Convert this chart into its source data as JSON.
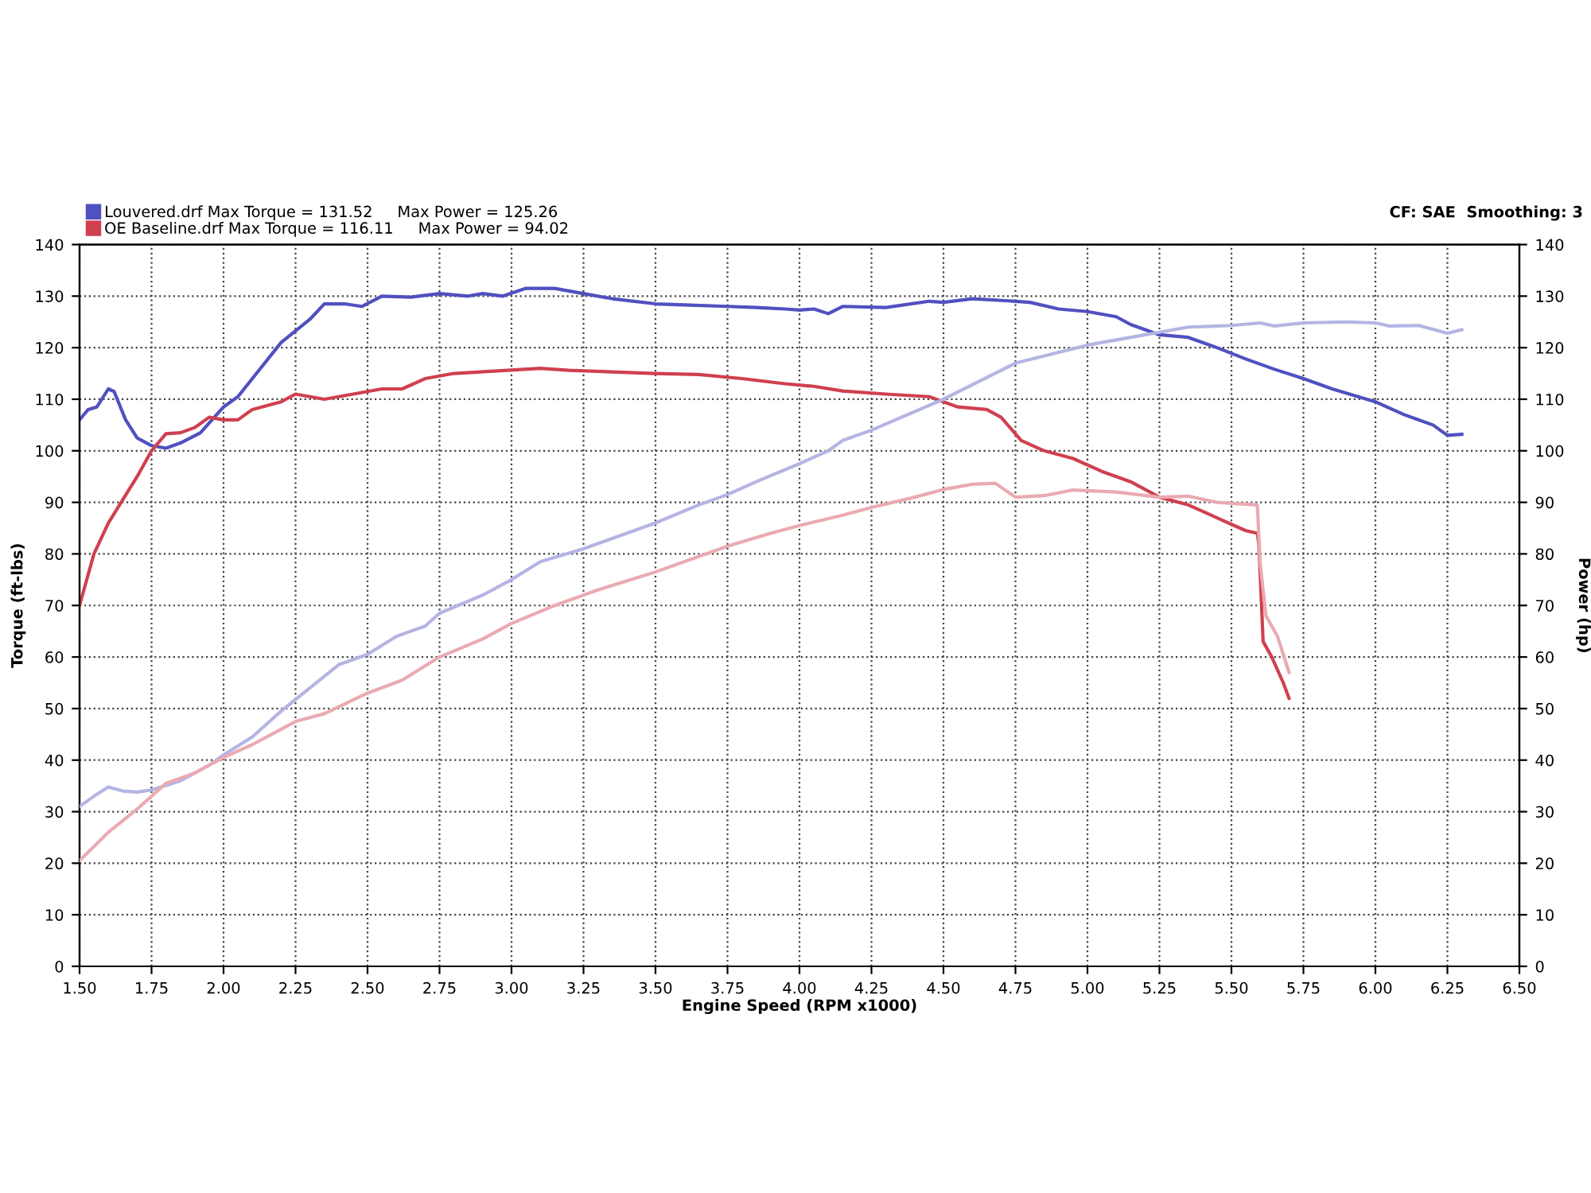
{
  "chart_data": {
    "type": "line",
    "xlabel": "Engine Speed (RPM x1000)",
    "ylabel": "Torque (ft-lbs)",
    "y2label": "Power (hp)",
    "annotations": [
      "CF: SAE  Smoothing: 3"
    ],
    "xlim": [
      1.5,
      6.5
    ],
    "xticks": [
      {
        "value": 1.5,
        "label": "1.50"
      },
      {
        "value": 1.75,
        "label": "1.75"
      },
      {
        "value": 2.0,
        "label": "2.00"
      },
      {
        "value": 2.25,
        "label": "2.25"
      },
      {
        "value": 2.5,
        "label": "2.50"
      },
      {
        "value": 2.75,
        "label": "2.75"
      },
      {
        "value": 3.0,
        "label": "3.00"
      },
      {
        "value": 3.25,
        "label": "3.25"
      },
      {
        "value": 3.5,
        "label": "3.50"
      },
      {
        "value": 3.75,
        "label": "3.75"
      },
      {
        "value": 4.0,
        "label": "4.00"
      },
      {
        "value": 4.25,
        "label": "4.25"
      },
      {
        "value": 4.5,
        "label": "4.50"
      },
      {
        "value": 4.75,
        "label": "4.75"
      },
      {
        "value": 5.0,
        "label": "5.00"
      },
      {
        "value": 5.25,
        "label": "5.25"
      },
      {
        "value": 5.5,
        "label": "5.50"
      },
      {
        "value": 5.75,
        "label": "5.75"
      },
      {
        "value": 6.0,
        "label": "6.00"
      },
      {
        "value": 6.25,
        "label": "6.25"
      },
      {
        "value": 6.5,
        "label": "6.50"
      }
    ],
    "ylim": [
      0,
      140
    ],
    "yticks": [
      0,
      10,
      20,
      30,
      40,
      50,
      60,
      70,
      80,
      90,
      100,
      110,
      120,
      130,
      140
    ],
    "y2lim": [
      0,
      140
    ],
    "y2ticks": [
      0,
      10,
      20,
      30,
      40,
      50,
      60,
      70,
      80,
      90,
      100,
      110,
      120,
      130,
      140
    ],
    "grid": true,
    "legend": "top left",
    "line_style": "solid",
    "marker": "none",
    "series": [
      {
        "name": "Louvered.drf Max Torque = 131.52     Max Power = 125.26",
        "color": "#5050c0",
        "x": [
          1.5,
          1.53,
          1.56,
          1.6,
          1.62,
          1.66,
          1.7,
          1.75,
          1.8,
          1.85,
          1.92,
          2.0,
          2.05,
          2.1,
          2.2,
          2.3,
          2.35,
          2.42,
          2.48,
          2.55,
          2.65,
          2.75,
          2.85,
          2.9,
          2.97,
          3.05,
          3.15,
          3.25,
          3.35,
          3.5,
          3.6,
          3.75,
          3.85,
          3.95,
          4.0,
          4.05,
          4.1,
          4.15,
          4.3,
          4.45,
          4.5,
          4.6,
          4.75,
          4.8,
          4.9,
          5.0,
          5.1,
          5.15,
          5.25,
          5.35,
          5.45,
          5.55,
          5.65,
          5.75,
          5.85,
          6.0,
          6.1,
          6.2,
          6.25,
          6.3
        ],
        "values": [
          106,
          108,
          108.5,
          112,
          111.5,
          106,
          102.5,
          101,
          100.5,
          101.5,
          103.5,
          108.5,
          110.5,
          114,
          121,
          125.5,
          128.5,
          128.5,
          128,
          130,
          129.8,
          130.5,
          130,
          130.5,
          130,
          131.5,
          131.5,
          130.5,
          129.5,
          128.5,
          128.3,
          128,
          127.8,
          127.5,
          127.3,
          127.5,
          126.6,
          128,
          127.8,
          129,
          128.8,
          129.5,
          129,
          128.8,
          127.5,
          127,
          126,
          124.5,
          122.5,
          122,
          120,
          117.8,
          115.8,
          114,
          112,
          109.5,
          107,
          105,
          103,
          103.2
        ]
      },
      {
        "name": "OE Baseline.drf Max Torque = 116.11     Max Power = 94.02",
        "color": "#d04050",
        "x": [
          1.5,
          1.55,
          1.6,
          1.7,
          1.75,
          1.8,
          1.85,
          1.9,
          1.95,
          2.0,
          2.05,
          2.1,
          2.2,
          2.25,
          2.35,
          2.45,
          2.55,
          2.62,
          2.7,
          2.8,
          2.95,
          3.1,
          3.2,
          3.35,
          3.5,
          3.65,
          3.8,
          3.95,
          4.05,
          4.15,
          4.3,
          4.45,
          4.55,
          4.65,
          4.7,
          4.77,
          4.85,
          4.95,
          5.05,
          5.15,
          5.25,
          5.35,
          5.45,
          5.55,
          5.59,
          5.595,
          5.6,
          5.61,
          5.64,
          5.68,
          5.7
        ],
        "values": [
          70,
          80,
          86,
          95,
          100,
          103.3,
          103.5,
          104.5,
          106.5,
          106,
          106,
          108,
          109.5,
          111,
          110,
          111,
          112,
          112,
          114,
          115,
          115.5,
          116,
          115.6,
          115.3,
          115,
          114.8,
          114,
          113,
          112.5,
          111.6,
          111,
          110.5,
          108.5,
          108,
          106.5,
          102,
          100,
          98.5,
          96,
          94,
          91,
          89.5,
          87,
          84.5,
          84,
          82,
          76,
          63,
          60,
          55,
          52
        ]
      },
      {
        "axis": "y2",
        "color": "#b4b4e4",
        "x": [
          1.5,
          1.55,
          1.6,
          1.65,
          1.7,
          1.75,
          1.85,
          1.95,
          2.0,
          2.1,
          2.2,
          2.3,
          2.4,
          2.5,
          2.6,
          2.7,
          2.75,
          2.9,
          3.0,
          3.1,
          3.25,
          3.5,
          3.65,
          3.75,
          3.85,
          4.0,
          4.1,
          4.15,
          4.25,
          4.5,
          4.75,
          5.0,
          5.1,
          5.25,
          5.35,
          5.5,
          5.6,
          5.65,
          5.75,
          5.9,
          6.0,
          6.05,
          6.15,
          6.25,
          6.3
        ],
        "values": [
          31,
          33,
          34.8,
          34,
          33.8,
          34.2,
          36,
          39,
          41,
          44.5,
          49.5,
          54,
          58.5,
          60.5,
          64,
          66,
          68.5,
          72,
          75,
          78.5,
          81,
          86,
          89.5,
          91.5,
          94,
          97.5,
          100,
          102,
          104,
          110,
          117,
          120.5,
          121.5,
          123,
          124,
          124.3,
          124.8,
          124.2,
          124.8,
          125,
          124.8,
          124.2,
          124.3,
          122.8,
          123.5
        ]
      },
      {
        "axis": "y2",
        "color": "#eaaab2",
        "x": [
          1.5,
          1.6,
          1.7,
          1.75,
          1.8,
          1.9,
          2.0,
          2.1,
          2.2,
          2.25,
          2.35,
          2.5,
          2.62,
          2.75,
          2.9,
          3.0,
          3.15,
          3.3,
          3.5,
          3.65,
          3.75,
          3.9,
          4.0,
          4.15,
          4.25,
          4.4,
          4.5,
          4.6,
          4.68,
          4.75,
          4.85,
          4.95,
          5.1,
          5.25,
          5.35,
          5.45,
          5.59,
          5.6,
          5.62,
          5.66,
          5.7
        ],
        "values": [
          20.5,
          26,
          30.5,
          33,
          35.5,
          37.5,
          40.5,
          43,
          46,
          47.5,
          49,
          53,
          55.5,
          60,
          63.5,
          66.5,
          70,
          73,
          76.5,
          79.5,
          81.5,
          84,
          85.5,
          87.5,
          89,
          91,
          92.5,
          93.5,
          93.7,
          91,
          91.3,
          92.4,
          92,
          91,
          91.2,
          90,
          89.5,
          78,
          68,
          64,
          57
        ]
      }
    ]
  }
}
